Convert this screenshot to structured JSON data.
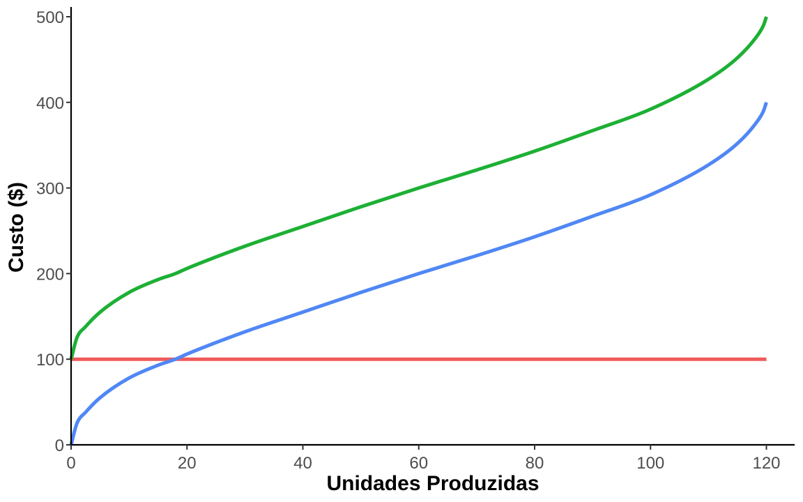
{
  "chart_data": {
    "type": "line",
    "title": "",
    "xlabel": "Unidades Produzidas",
    "ylabel": "Custo ($)",
    "xlim": [
      0,
      125
    ],
    "ylim": [
      0,
      510
    ],
    "x_ticks": [
      0,
      20,
      40,
      60,
      80,
      100,
      120
    ],
    "y_ticks": [
      0,
      100,
      200,
      300,
      400,
      500
    ],
    "grid": false,
    "legend": "none",
    "series": [
      {
        "color": "#F05A5A",
        "x": [
          0,
          120
        ],
        "y": [
          100,
          100
        ]
      },
      {
        "color": "#5087F5",
        "x": [
          0,
          1,
          2.5,
          5,
          10,
          15,
          18,
          20,
          30,
          40,
          50,
          60,
          70,
          80,
          90,
          100,
          110,
          115,
          118,
          119.5,
          120
        ],
        "y": [
          0,
          25,
          38,
          55,
          78,
          93,
          100,
          106,
          132,
          155,
          178,
          200,
          221,
          243,
          267,
          292,
          327,
          352,
          374,
          390,
          400
        ]
      },
      {
        "color": "#1DB034",
        "x": [
          0,
          1,
          2.5,
          5,
          10,
          15,
          18,
          20,
          30,
          40,
          50,
          60,
          70,
          80,
          90,
          100,
          110,
          115,
          118,
          119.5,
          120
        ],
        "y": [
          100,
          125,
          138,
          155,
          178,
          193,
          200,
          206,
          232,
          255,
          278,
          300,
          321,
          343,
          367,
          392,
          427,
          452,
          474,
          490,
          500
        ]
      }
    ]
  }
}
